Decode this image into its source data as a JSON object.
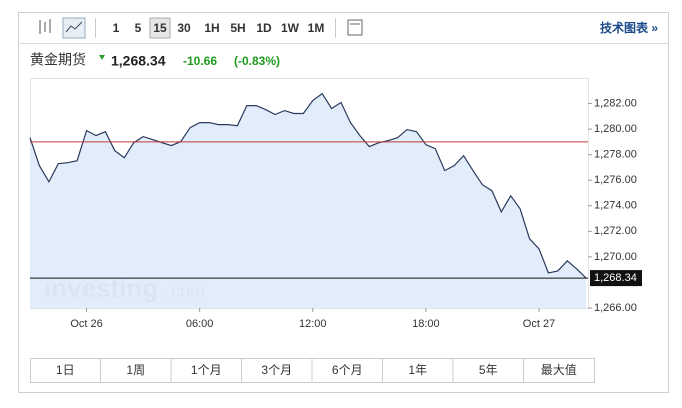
{
  "toolbar": {
    "intervals": [
      "1",
      "5",
      "15",
      "30",
      "1H",
      "5H",
      "1D",
      "1W",
      "1M"
    ],
    "selected": 2,
    "tech_link": "技术图表 »"
  },
  "chart_data": {
    "type": "area",
    "title": "黄金期货",
    "price": "1,268.34",
    "change": "-10.66",
    "change_pct": "(-0.83%)",
    "watermark": "investing",
    "watermark_suffix": ".com",
    "x": [
      -3,
      -2.5,
      -2,
      -1.5,
      -1,
      -0.5,
      0,
      0.5,
      1,
      1.5,
      2,
      2.5,
      3,
      3.5,
      4,
      4.5,
      5,
      5.5,
      6,
      6.5,
      7,
      7.5,
      8,
      8.5,
      9,
      9.5,
      10,
      10.5,
      11,
      11.5,
      12,
      12.5,
      13,
      13.5,
      14,
      14.5,
      15,
      15.5,
      16,
      16.5,
      17,
      17.5,
      18,
      18.5,
      19,
      19.5,
      20,
      20.5,
      21,
      21.5,
      22,
      22.5,
      23,
      23.5,
      24,
      24.5,
      25,
      25.5,
      26,
      26.5
    ],
    "series": [
      {
        "name": "黄金期货",
        "color": "#2b3a5c",
        "fill": "#ddeafa",
        "values": [
          1279.33,
          1277.14,
          1275.88,
          1277.29,
          1277.37,
          1277.53,
          1279.88,
          1279.49,
          1279.8,
          1278.31,
          1277.76,
          1278.94,
          1279.41,
          1279.18,
          1278.94,
          1278.71,
          1279.02,
          1280.12,
          1280.51,
          1280.51,
          1280.35,
          1280.35,
          1280.27,
          1281.84,
          1281.84,
          1281.53,
          1281.14,
          1281.45,
          1281.22,
          1281.22,
          1282.24,
          1282.78,
          1281.61,
          1282.08,
          1280.51,
          1279.49,
          1278.63,
          1278.94,
          1279.1,
          1279.33,
          1279.96,
          1279.8,
          1278.78,
          1278.47,
          1276.75,
          1277.14,
          1277.92,
          1276.75,
          1275.65,
          1275.18,
          1273.53,
          1274.78,
          1273.76,
          1271.41,
          1270.63,
          1268.75,
          1268.9,
          1269.69,
          1269.06,
          1268.34
        ]
      }
    ],
    "xlim": [
      -3,
      26.6
    ],
    "xticks": [
      {
        "value": 0,
        "label": "Oct 26"
      },
      {
        "value": 6,
        "label": "06:00"
      },
      {
        "value": 12,
        "label": "12:00"
      },
      {
        "value": 18,
        "label": "18:00"
      },
      {
        "value": 24,
        "label": "Oct 27"
      }
    ],
    "ylim": [
      1266,
      1284
    ],
    "yticks": [
      {
        "value": 1266,
        "label": "1,266.00"
      },
      {
        "value": 1270,
        "label": "1,270.00"
      },
      {
        "value": 1272,
        "label": "1,272.00"
      },
      {
        "value": 1274,
        "label": "1,274.00"
      },
      {
        "value": 1276,
        "label": "1,276.00"
      },
      {
        "value": 1278,
        "label": "1,278.00"
      },
      {
        "value": 1280,
        "label": "1,280.00"
      },
      {
        "value": 1282,
        "label": "1,282.00"
      }
    ],
    "reference_line": {
      "value": 1279,
      "color": "#c0393b"
    },
    "last_value": {
      "value": 1268.34,
      "label": "1,268.34"
    }
  },
  "ranges": [
    "1日",
    "1周",
    "1个月",
    "3个月",
    "6个月",
    "1年",
    "5年",
    "最大值"
  ]
}
